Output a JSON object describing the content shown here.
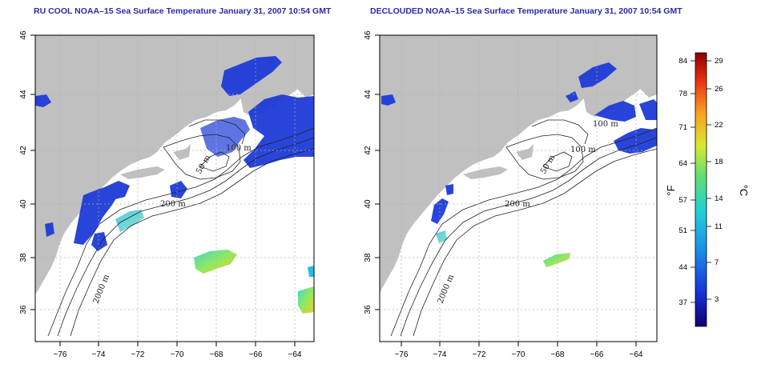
{
  "panels": [
    {
      "id": "left",
      "title": "RU COOL NOAA–15 Sea Surface Temperature January 31, 2007 10:54 GMT",
      "contour_labels": [
        "50 m",
        "100 m",
        "200 m",
        "2000 m"
      ]
    },
    {
      "id": "right",
      "title": "DECLOUDED NOAA–15 Sea Surface Temperature January 31, 2007 10:54 GMT",
      "contour_labels": [
        "50 m",
        "100 m",
        "100 m",
        "200 m",
        "2000 m"
      ]
    }
  ],
  "axes": {
    "lat_ticks": [
      "46",
      "44",
      "42",
      "40",
      "38",
      "36"
    ],
    "lon_ticks": [
      "−76",
      "−74",
      "−72",
      "−70",
      "−68",
      "−66",
      "−64"
    ]
  },
  "colorbar": {
    "f_ticks": [
      "84",
      "78",
      "71",
      "64",
      "57",
      "51",
      "44",
      "37"
    ],
    "c_ticks": [
      "29",
      "26",
      "22",
      "18",
      "14",
      "11",
      "7",
      "3"
    ],
    "f_unit": "°F",
    "c_unit": "°C"
  },
  "colors": {
    "land": "#c0c0c0",
    "sst_cold": "#1e3cd8",
    "sst_warm": "#b40000",
    "grid": "#b0b0b0"
  }
}
